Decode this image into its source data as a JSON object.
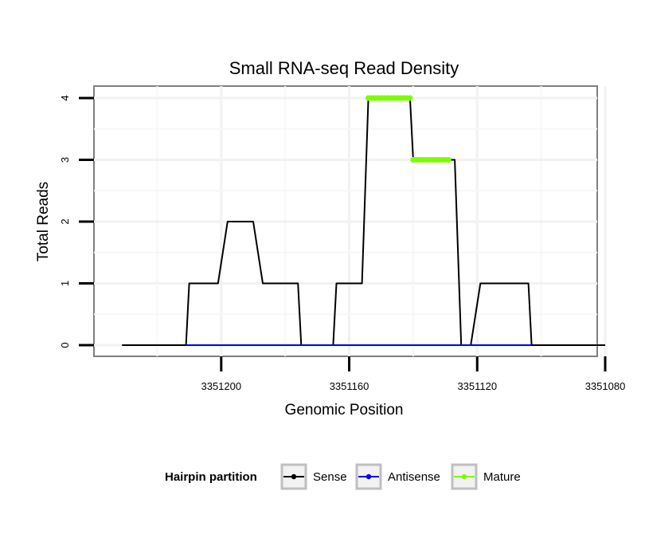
{
  "chart_data": {
    "type": "line",
    "title": "Small RNA-seq Read Density",
    "xlabel": "Genomic Position",
    "ylabel": "Total Reads",
    "x_reversed": true,
    "xlim": [
      3351080,
      3351244
    ],
    "ylim": [
      0,
      4
    ],
    "x_ticks": [
      3351200,
      3351160,
      3351120,
      3351080
    ],
    "x_tick_labels": [
      "3351200",
      "3351160",
      "3351120",
      "3351080"
    ],
    "y_ticks": [
      0,
      1,
      2,
      3,
      4
    ],
    "y_tick_labels": [
      "0",
      "1",
      "2",
      "3",
      "4"
    ],
    "grid": true,
    "legend": {
      "title": "Hairpin partition",
      "placement": "bottom",
      "entries": [
        {
          "name": "Sense",
          "color": "#000000"
        },
        {
          "name": "Antisense",
          "color": "#0000ff"
        },
        {
          "name": "Mature",
          "color": "#7cfc00"
        }
      ]
    },
    "series": [
      {
        "name": "Sense",
        "color": "#000000",
        "style": "line",
        "x": [
          3351231,
          3351211,
          3351210,
          3351201,
          3351198,
          3351190,
          3351187,
          3351176,
          3351175,
          3351165,
          3351164,
          3351156,
          3351154,
          3351141,
          3351140,
          3351127,
          3351125,
          3351122,
          3351119,
          3351104,
          3351103,
          3351080
        ],
        "y": [
          0,
          0,
          1,
          1,
          2,
          2,
          1,
          1,
          0,
          0,
          1,
          1,
          4,
          4,
          3,
          3,
          0,
          0,
          1,
          1,
          0,
          0
        ]
      },
      {
        "name": "Antisense",
        "color": "#0000ff",
        "style": "line",
        "x": [
          3351211,
          3351103
        ],
        "y": [
          0,
          0
        ]
      },
      {
        "name": "Mature",
        "color": "#7cfc00",
        "style": "points",
        "x": [
          3351154,
          3351153,
          3351152,
          3351151,
          3351150,
          3351149,
          3351148,
          3351147,
          3351146,
          3351145,
          3351144,
          3351143,
          3351142,
          3351141,
          3351140,
          3351139,
          3351138,
          3351137,
          3351136,
          3351135,
          3351134,
          3351133,
          3351132,
          3351131,
          3351130,
          3351129
        ],
        "y": [
          4,
          4,
          4,
          4,
          4,
          4,
          4,
          4,
          4,
          4,
          4,
          4,
          4,
          4,
          3,
          3,
          3,
          3,
          3,
          3,
          3,
          3,
          3,
          3,
          3,
          3
        ]
      }
    ]
  }
}
